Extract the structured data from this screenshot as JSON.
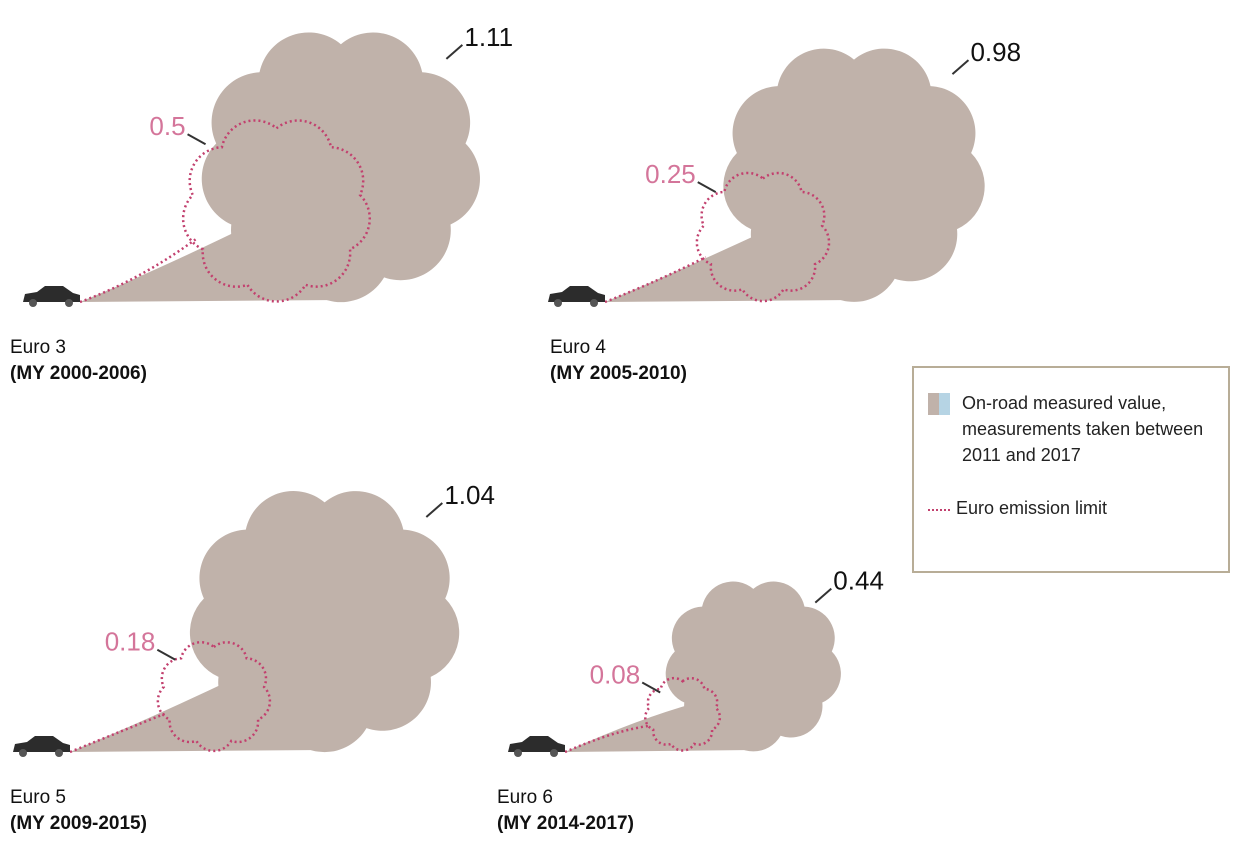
{
  "chart_data": {
    "type": "cloud",
    "panels": [
      {
        "name": "Euro 3",
        "period": "(MY 2000-2006)",
        "measured": 1.11,
        "limit": 0.5
      },
      {
        "name": "Euro 4",
        "period": "(MY 2005-2010)",
        "measured": 0.98,
        "limit": 0.25
      },
      {
        "name": "Euro 5",
        "period": "(MY 2009-2015)",
        "measured": 1.04,
        "limit": 0.18
      },
      {
        "name": "Euro 6",
        "period": "(MY 2014-2017)",
        "measured": 0.44,
        "limit": 0.08
      }
    ],
    "legend": {
      "measured_label": "On-road measured value, measurements taken between 2011 and 2017",
      "limit_label": "Euro emission limit",
      "measured_colors": [
        "#c0b2aa",
        "#b6d4e4"
      ],
      "limit_color": "#c2406e"
    },
    "limit_text_color": "#d4759a"
  }
}
